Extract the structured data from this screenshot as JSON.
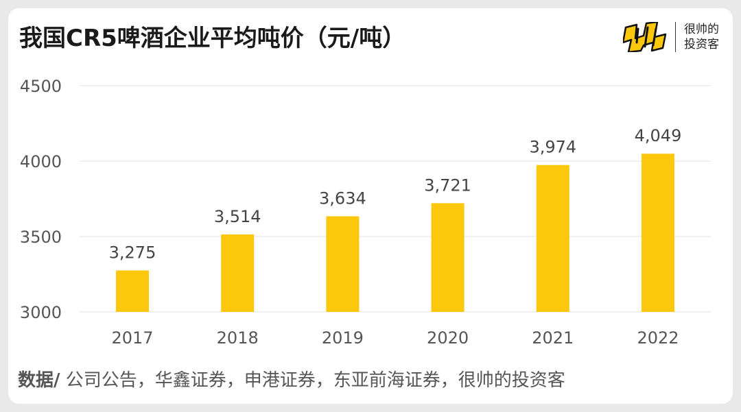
{
  "title": "我国CR5啤酒企业平均吨价（元/吨）",
  "brand": {
    "logo_icon": "shuai-logo-icon",
    "line1": "很帅的",
    "line2": "投资客"
  },
  "source": {
    "label": "数据/",
    "text": " 公司公告，华鑫证券，申港证券，东亚前海证券，很帅的投资客"
  },
  "chart_data": {
    "type": "bar",
    "categories": [
      "2017",
      "2018",
      "2019",
      "2020",
      "2021",
      "2022"
    ],
    "values": [
      3275,
      3514,
      3634,
      3721,
      3974,
      4049
    ],
    "data_labels": [
      "3,275",
      "3,514",
      "3,634",
      "3,721",
      "3,974",
      "4,049"
    ],
    "ylim": [
      3000,
      4500
    ],
    "yticks": [
      3000,
      3500,
      4000,
      4500
    ],
    "grid": true,
    "bar_color": "#FDC70C",
    "title": "",
    "xlabel": "",
    "ylabel": ""
  }
}
